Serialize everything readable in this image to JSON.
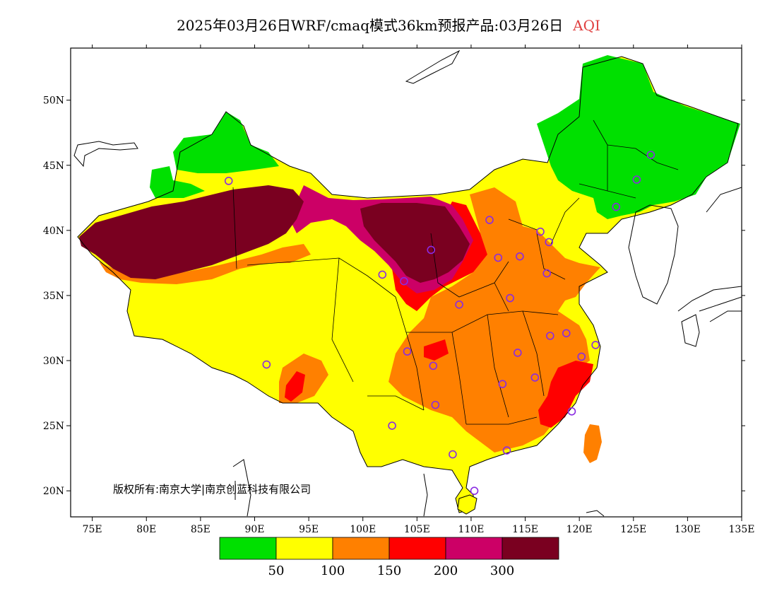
{
  "title": {
    "main": "2025年03月26日WRF/cmaq模式36km预报产品:03月26日",
    "variable": "AQI"
  },
  "axes": {
    "x_ticks": [
      "75E",
      "80E",
      "85E",
      "90E",
      "95E",
      "100E",
      "105E",
      "110E",
      "115E",
      "120E",
      "125E",
      "130E",
      "135E"
    ],
    "y_ticks": [
      "50N",
      "45N",
      "40N",
      "35N",
      "30N",
      "25N",
      "20N"
    ],
    "lon_range": [
      73,
      135
    ],
    "lat_range": [
      18,
      54
    ]
  },
  "copyright": "版权所有:南京大学|南京创蓝科技有限公司",
  "legend": {
    "colors": [
      "#00e000",
      "#ffff00",
      "#ff8000",
      "#ff0000",
      "#cc0066",
      "#7a0020"
    ],
    "labels": [
      "50",
      "100",
      "150",
      "200",
      "300"
    ]
  },
  "stations": [
    {
      "name": "",
      "lon": 87.6,
      "lat": 43.8
    },
    {
      "name": "",
      "lon": 91.1,
      "lat": 29.7
    },
    {
      "name": "",
      "lon": 101.8,
      "lat": 36.6
    },
    {
      "name": "",
      "lon": 103.8,
      "lat": 36.1
    },
    {
      "name": "",
      "lon": 106.3,
      "lat": 38.5
    },
    {
      "name": "",
      "lon": 111.7,
      "lat": 40.8
    },
    {
      "name": "",
      "lon": 112.5,
      "lat": 37.9
    },
    {
      "name": "",
      "lon": 114.5,
      "lat": 38.0
    },
    {
      "name": "",
      "lon": 116.4,
      "lat": 39.9
    },
    {
      "name": "",
      "lon": 117.2,
      "lat": 39.1
    },
    {
      "name": "",
      "lon": 117.0,
      "lat": 36.7
    },
    {
      "name": "",
      "lon": 113.6,
      "lat": 34.8
    },
    {
      "name": "",
      "lon": 108.9,
      "lat": 34.3
    },
    {
      "name": "",
      "lon": 117.3,
      "lat": 31.9
    },
    {
      "name": "",
      "lon": 118.8,
      "lat": 32.1
    },
    {
      "name": "",
      "lon": 121.5,
      "lat": 31.2
    },
    {
      "name": "",
      "lon": 120.2,
      "lat": 30.3
    },
    {
      "name": "",
      "lon": 114.3,
      "lat": 30.6
    },
    {
      "name": "",
      "lon": 115.9,
      "lat": 28.7
    },
    {
      "name": "",
      "lon": 112.9,
      "lat": 28.2
    },
    {
      "name": "",
      "lon": 119.3,
      "lat": 26.1
    },
    {
      "name": "",
      "lon": 113.3,
      "lat": 23.1
    },
    {
      "name": "",
      "lon": 108.3,
      "lat": 22.8
    },
    {
      "name": "",
      "lon": 110.3,
      "lat": 20.0
    },
    {
      "name": "",
      "lon": 106.7,
      "lat": 26.6
    },
    {
      "name": "",
      "lon": 102.7,
      "lat": 25.0
    },
    {
      "name": "",
      "lon": 104.1,
      "lat": 30.7
    },
    {
      "name": "",
      "lon": 106.5,
      "lat": 29.6
    },
    {
      "name": "",
      "lon": 123.4,
      "lat": 41.8
    },
    {
      "name": "",
      "lon": 125.3,
      "lat": 43.9
    },
    {
      "name": "",
      "lon": 126.6,
      "lat": 45.8
    }
  ]
}
